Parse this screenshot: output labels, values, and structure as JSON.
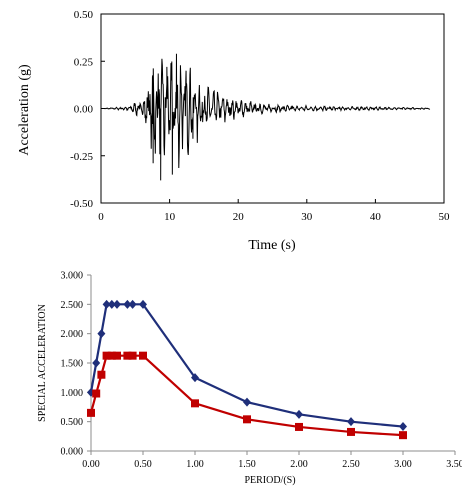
{
  "chart_data": [
    {
      "type": "line",
      "title": "",
      "xlabel": "Time (s)",
      "ylabel": "Acceleration (g)",
      "xlim": [
        0,
        50
      ],
      "ylim": [
        -0.5,
        0.5
      ],
      "x_ticks": [
        "0",
        "10",
        "20",
        "30",
        "40",
        "50"
      ],
      "y_ticks": [
        "0.50",
        "0.25",
        "0.00",
        "-0.25",
        "-0.50"
      ],
      "grid": false,
      "legend": "none",
      "series_color": "#000000",
      "signal": {
        "duration": 48,
        "peak_positive": {
          "x": 11.0,
          "y": 0.29
        },
        "peak_negative": {
          "x": 8.7,
          "y": -0.38
        },
        "envelope": [
          {
            "x": 0,
            "y": 0.0
          },
          {
            "x": 4,
            "y": 0.01
          },
          {
            "x": 6,
            "y": 0.05
          },
          {
            "x": 7,
            "y": 0.16
          },
          {
            "x": 8,
            "y": 0.25
          },
          {
            "x": 9,
            "y": 0.3
          },
          {
            "x": 10,
            "y": 0.28
          },
          {
            "x": 11,
            "y": 0.27
          },
          {
            "x": 12,
            "y": 0.24
          },
          {
            "x": 13,
            "y": 0.2
          },
          {
            "x": 14,
            "y": 0.16
          },
          {
            "x": 16,
            "y": 0.1
          },
          {
            "x": 18,
            "y": 0.07
          },
          {
            "x": 21,
            "y": 0.04
          },
          {
            "x": 25,
            "y": 0.02
          },
          {
            "x": 30,
            "y": 0.012
          },
          {
            "x": 40,
            "y": 0.008
          },
          {
            "x": 48,
            "y": 0.003
          }
        ]
      }
    },
    {
      "type": "line",
      "title": "",
      "xlabel": "PERIOD/(S)",
      "ylabel": "SPECIAL ACCELERATION",
      "xlim": [
        0,
        3.5
      ],
      "ylim": [
        0,
        3
      ],
      "x_ticks": [
        "0.00",
        "0.50",
        "1.00",
        "1.50",
        "2.00",
        "2.50",
        "3.00",
        "3.50"
      ],
      "y_ticks": [
        "3.000",
        "2.500",
        "2.000",
        "1.500",
        "1.000",
        "0.500",
        "0.000"
      ],
      "grid": false,
      "legend": "none",
      "series": [
        {
          "color": "#1f2f7a",
          "marker": "diamond",
          "points": [
            {
              "x": 0.0,
              "y": 1.0
            },
            {
              "x": 0.05,
              "y": 1.5
            },
            {
              "x": 0.1,
              "y": 2.0
            },
            {
              "x": 0.15,
              "y": 2.5
            },
            {
              "x": 0.2,
              "y": 2.5
            },
            {
              "x": 0.25,
              "y": 2.5
            },
            {
              "x": 0.35,
              "y": 2.5
            },
            {
              "x": 0.4,
              "y": 2.5
            },
            {
              "x": 0.5,
              "y": 2.5
            },
            {
              "x": 1.0,
              "y": 1.25
            },
            {
              "x": 1.5,
              "y": 0.833
            },
            {
              "x": 2.0,
              "y": 0.625
            },
            {
              "x": 2.5,
              "y": 0.5
            },
            {
              "x": 3.0,
              "y": 0.417
            }
          ]
        },
        {
          "color": "#c00000",
          "marker": "square",
          "points": [
            {
              "x": 0.0,
              "y": 0.65
            },
            {
              "x": 0.05,
              "y": 0.98
            },
            {
              "x": 0.1,
              "y": 1.3
            },
            {
              "x": 0.15,
              "y": 1.625
            },
            {
              "x": 0.2,
              "y": 1.625
            },
            {
              "x": 0.25,
              "y": 1.625
            },
            {
              "x": 0.35,
              "y": 1.625
            },
            {
              "x": 0.4,
              "y": 1.625
            },
            {
              "x": 0.5,
              "y": 1.625
            },
            {
              "x": 1.0,
              "y": 0.8125
            },
            {
              "x": 1.5,
              "y": 0.54
            },
            {
              "x": 2.0,
              "y": 0.41
            },
            {
              "x": 2.5,
              "y": 0.325
            },
            {
              "x": 3.0,
              "y": 0.27
            }
          ]
        }
      ]
    }
  ]
}
